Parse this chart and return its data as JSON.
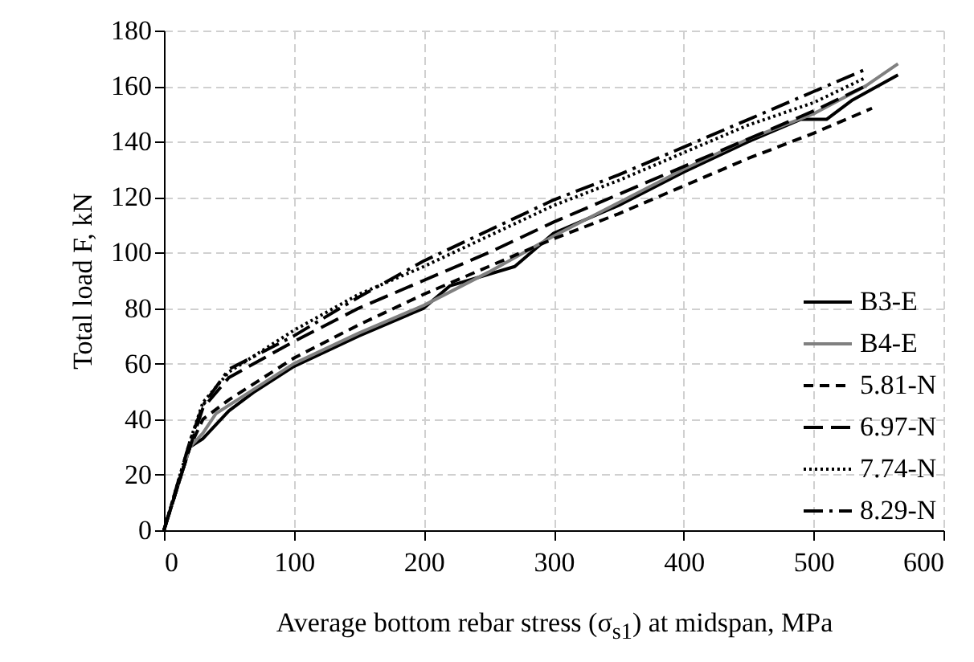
{
  "chart_data": {
    "type": "line",
    "xlabel": "Average bottom rebar stress (σ$_{s1}$) at midspan, MPa",
    "ylabel": "Total load F, kN",
    "xlim": [
      0,
      600
    ],
    "ylim": [
      0,
      180
    ],
    "xticks": [
      0,
      100,
      200,
      300,
      400,
      500,
      600
    ],
    "yticks": [
      0,
      20,
      40,
      60,
      80,
      100,
      120,
      140,
      160,
      180
    ],
    "grid": true,
    "legend": "bottom right",
    "marker": "none",
    "series": [
      {
        "name": "B3-E",
        "color": "#000000",
        "line_style": "solid",
        "x": [
          0,
          20,
          30,
          40,
          50,
          70,
          100,
          150,
          200,
          220,
          270,
          300,
          350,
          400,
          450,
          490,
          510,
          530,
          565
        ],
        "values": [
          0,
          30,
          33,
          38,
          43,
          50,
          59,
          70,
          80,
          88,
          95,
          107,
          117,
          129,
          140,
          148,
          148,
          155,
          164
        ]
      },
      {
        "name": "B4-E",
        "color": "#808080",
        "line_style": "solid",
        "x": [
          0,
          20,
          30,
          40,
          60,
          100,
          150,
          200,
          250,
          300,
          350,
          400,
          450,
          500,
          540,
          565
        ],
        "values": [
          0,
          30,
          35,
          42,
          48,
          60,
          71,
          81,
          93,
          106,
          118,
          130,
          141,
          150,
          160,
          168
        ]
      },
      {
        "name": "5.81-N",
        "color": "#000000",
        "line_style": "dashed",
        "x": [
          0,
          20,
          30,
          50,
          100,
          150,
          200,
          250,
          300,
          350,
          400,
          450,
          500,
          545
        ],
        "values": [
          0,
          30,
          40,
          47,
          62,
          74,
          85,
          95,
          105,
          114,
          124,
          134,
          143,
          152
        ]
      },
      {
        "name": "6.97-N",
        "color": "#000000",
        "line_style": "longdash",
        "x": [
          0,
          20,
          30,
          50,
          100,
          150,
          200,
          250,
          300,
          350,
          400,
          450,
          500,
          540
        ],
        "values": [
          0,
          30,
          44,
          55,
          68,
          80,
          90,
          100,
          111,
          121,
          131,
          141,
          151,
          160
        ]
      },
      {
        "name": "7.74-N",
        "color": "#000000",
        "line_style": "dotted",
        "x": [
          0,
          20,
          30,
          50,
          100,
          150,
          200,
          250,
          300,
          350,
          400,
          450,
          500,
          540
        ],
        "values": [
          0,
          32,
          46,
          57,
          72,
          85,
          95,
          106,
          117,
          126,
          136,
          146,
          154,
          163
        ]
      },
      {
        "name": "8.29-N",
        "color": "#000000",
        "line_style": "dashdot",
        "x": [
          0,
          20,
          30,
          50,
          100,
          150,
          200,
          250,
          300,
          350,
          400,
          450,
          500,
          540
        ],
        "values": [
          0,
          32,
          45,
          58,
          70,
          84,
          97,
          108,
          119,
          128,
          138,
          148,
          158,
          166
        ]
      }
    ]
  }
}
